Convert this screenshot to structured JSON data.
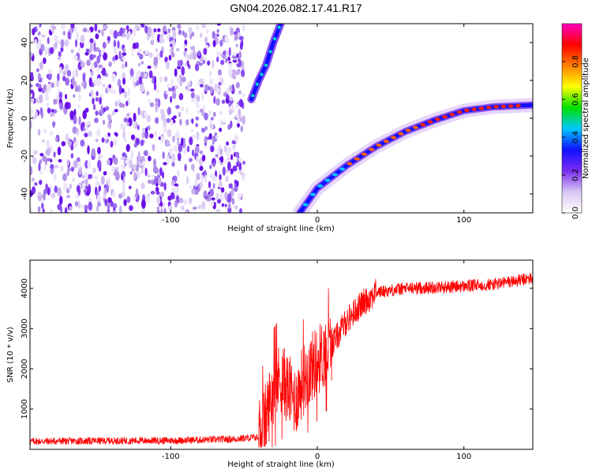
{
  "title": "GN04.2026.082.17.41.R17",
  "chart_data": [
    {
      "type": "heatmap",
      "xlabel": "Height of straight line (km)",
      "ylabel": "Frequency (Hz)",
      "xlim": [
        -196,
        147
      ],
      "ylim": [
        -50,
        50
      ],
      "xticks": [
        -100,
        0,
        100
      ],
      "yticks": [
        -40,
        -20,
        0,
        20,
        40
      ],
      "colorbar": {
        "label": "Normalized spectral amplitude",
        "range": [
          0,
          1
        ],
        "ticks": [
          0.0,
          0.2,
          0.4,
          0.6,
          0.8
        ],
        "colors": [
          "#ffffff",
          "#d9c6f2",
          "#7b2cf0",
          "#1010ff",
          "#00c8ff",
          "#00e000",
          "#ffff00",
          "#ff8000",
          "#ff0000",
          "#ff00c0"
        ]
      },
      "trace_lower": {
        "x": [
          -12,
          0,
          20,
          40,
          60,
          80,
          100,
          120,
          147
        ],
        "y": [
          -50,
          -37,
          -25,
          -15,
          -7,
          -1,
          4,
          6,
          7
        ]
      },
      "trace_upper": {
        "x": [
          -45,
          -40,
          -35,
          -30,
          -25
        ],
        "y": [
          10,
          20,
          28,
          40,
          50
        ]
      }
    },
    {
      "type": "line",
      "xlabel": "Height of straight line (km)",
      "ylabel": "SNR (10 * v/v)",
      "xlim": [
        -196,
        147
      ],
      "ylim": [
        0,
        4700
      ],
      "xticks": [
        -100,
        0,
        100
      ],
      "yticks": [
        1000,
        2000,
        3000,
        4000
      ],
      "color": "#ff0000",
      "series": [
        {
          "x": [
            -196,
            -150,
            -100,
            -60,
            -40,
            -35,
            -30,
            -25,
            -20,
            -15,
            -10,
            -5,
            0,
            10,
            20,
            30,
            40,
            60,
            80,
            100,
            120,
            147
          ],
          "y": [
            200,
            210,
            220,
            250,
            300,
            800,
            1500,
            1800,
            1500,
            1200,
            1700,
            2000,
            2200,
            2600,
            3200,
            3600,
            3900,
            4000,
            4020,
            4050,
            4100,
            4250
          ]
        }
      ]
    }
  ]
}
